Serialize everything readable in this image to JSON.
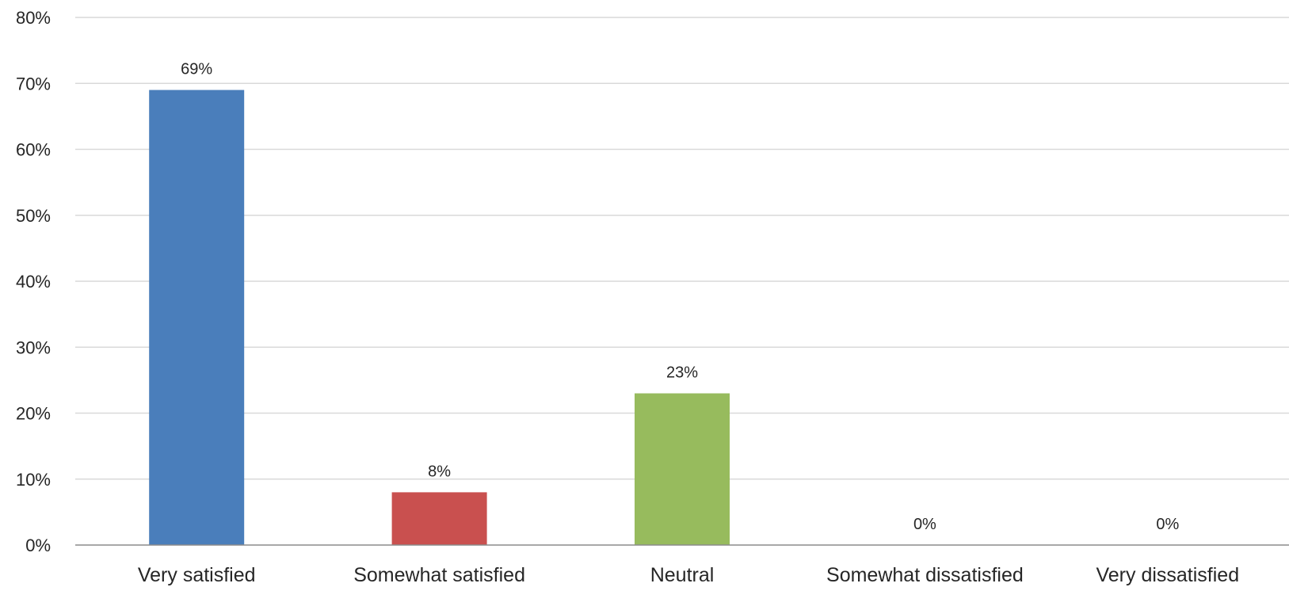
{
  "chart_data": {
    "type": "bar",
    "categories": [
      "Very satisfied",
      "Somewhat satisfied",
      "Neutral",
      "Somewhat dissatisfied",
      "Very dissatisfied"
    ],
    "values": [
      69,
      8,
      23,
      0,
      0
    ],
    "data_labels": [
      "69%",
      "8%",
      "23%",
      "0%",
      "0%"
    ],
    "colors": [
      "#4a7ebb",
      "#c9504f",
      "#97bb5d",
      "#8064a2",
      "#4bacc6"
    ],
    "ylim": [
      0,
      80
    ],
    "y_ticks": [
      0,
      10,
      20,
      30,
      40,
      50,
      60,
      70,
      80
    ],
    "y_tick_labels": [
      "0%",
      "10%",
      "20%",
      "30%",
      "40%",
      "50%",
      "60%",
      "70%",
      "80%"
    ],
    "grid": true,
    "legend": "none"
  }
}
